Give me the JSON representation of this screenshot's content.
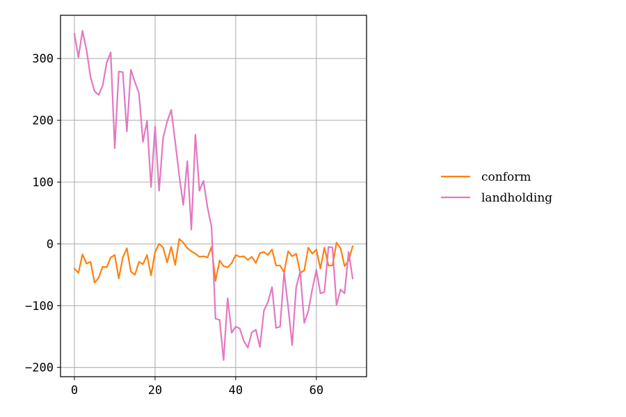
{
  "chart_data": {
    "type": "line",
    "title": "",
    "xlabel": "",
    "ylabel": "",
    "xlim": [
      -3.45,
      72.45
    ],
    "ylim": [
      -215,
      370
    ],
    "xticks": [
      0,
      20,
      40,
      60
    ],
    "yticks": [
      -200,
      -100,
      0,
      100,
      200,
      300
    ],
    "grid": true,
    "legend_position": "right-outside",
    "x": [
      0,
      1,
      2,
      3,
      4,
      5,
      6,
      7,
      8,
      9,
      10,
      11,
      12,
      13,
      14,
      15,
      16,
      17,
      18,
      19,
      20,
      21,
      22,
      23,
      24,
      25,
      26,
      27,
      28,
      29,
      30,
      31,
      32,
      33,
      34,
      35,
      36,
      37,
      38,
      39,
      40,
      41,
      42,
      43,
      44,
      45,
      46,
      47,
      48,
      49,
      50,
      51,
      52,
      53,
      54,
      55,
      56,
      57,
      58,
      59,
      60,
      61,
      62,
      63,
      64,
      65,
      66,
      67,
      68,
      69
    ],
    "series": [
      {
        "name": "conform",
        "color": "#ff7f0e",
        "values": [
          -40,
          -47,
          -17,
          -32,
          -29,
          -63,
          -55,
          -37,
          -38,
          -22,
          -18,
          -56,
          -22,
          -7,
          -45,
          -50,
          -29,
          -33,
          -18,
          -51,
          -13,
          0,
          -6,
          -30,
          -5,
          -34,
          8,
          2,
          -7,
          -12,
          -16,
          -21,
          -20,
          -22,
          -5,
          -60,
          -27,
          -36,
          -38,
          -31,
          -18,
          -21,
          -20,
          -26,
          -21,
          -31,
          -15,
          -13,
          -18,
          -9,
          -35,
          -35,
          -46,
          -12,
          -20,
          -16,
          -47,
          -43,
          -6,
          -16,
          -9,
          -40,
          -6,
          -35,
          -35,
          2,
          -7,
          -36,
          -27,
          -4
        ]
      },
      {
        "name": "landholding",
        "color": "#e377c2",
        "values": [
          340,
          302,
          345,
          314,
          270,
          247,
          241,
          256,
          293,
          310,
          155,
          279,
          278,
          182,
          282,
          262,
          244,
          165,
          199,
          92,
          190,
          86,
          172,
          198,
          217,
          165,
          110,
          63,
          134,
          23,
          177,
          86,
          102,
          59,
          28,
          -121,
          -123,
          -188,
          -88,
          -144,
          -134,
          -137,
          -157,
          -168,
          -143,
          -139,
          -167,
          -108,
          -94,
          -70,
          -136,
          -134,
          -46,
          -102,
          -164,
          -70,
          -45,
          -128,
          -109,
          -73,
          -42,
          -80,
          -78,
          -5,
          -6,
          -99,
          -74,
          -80,
          -13,
          -56
        ]
      }
    ]
  }
}
